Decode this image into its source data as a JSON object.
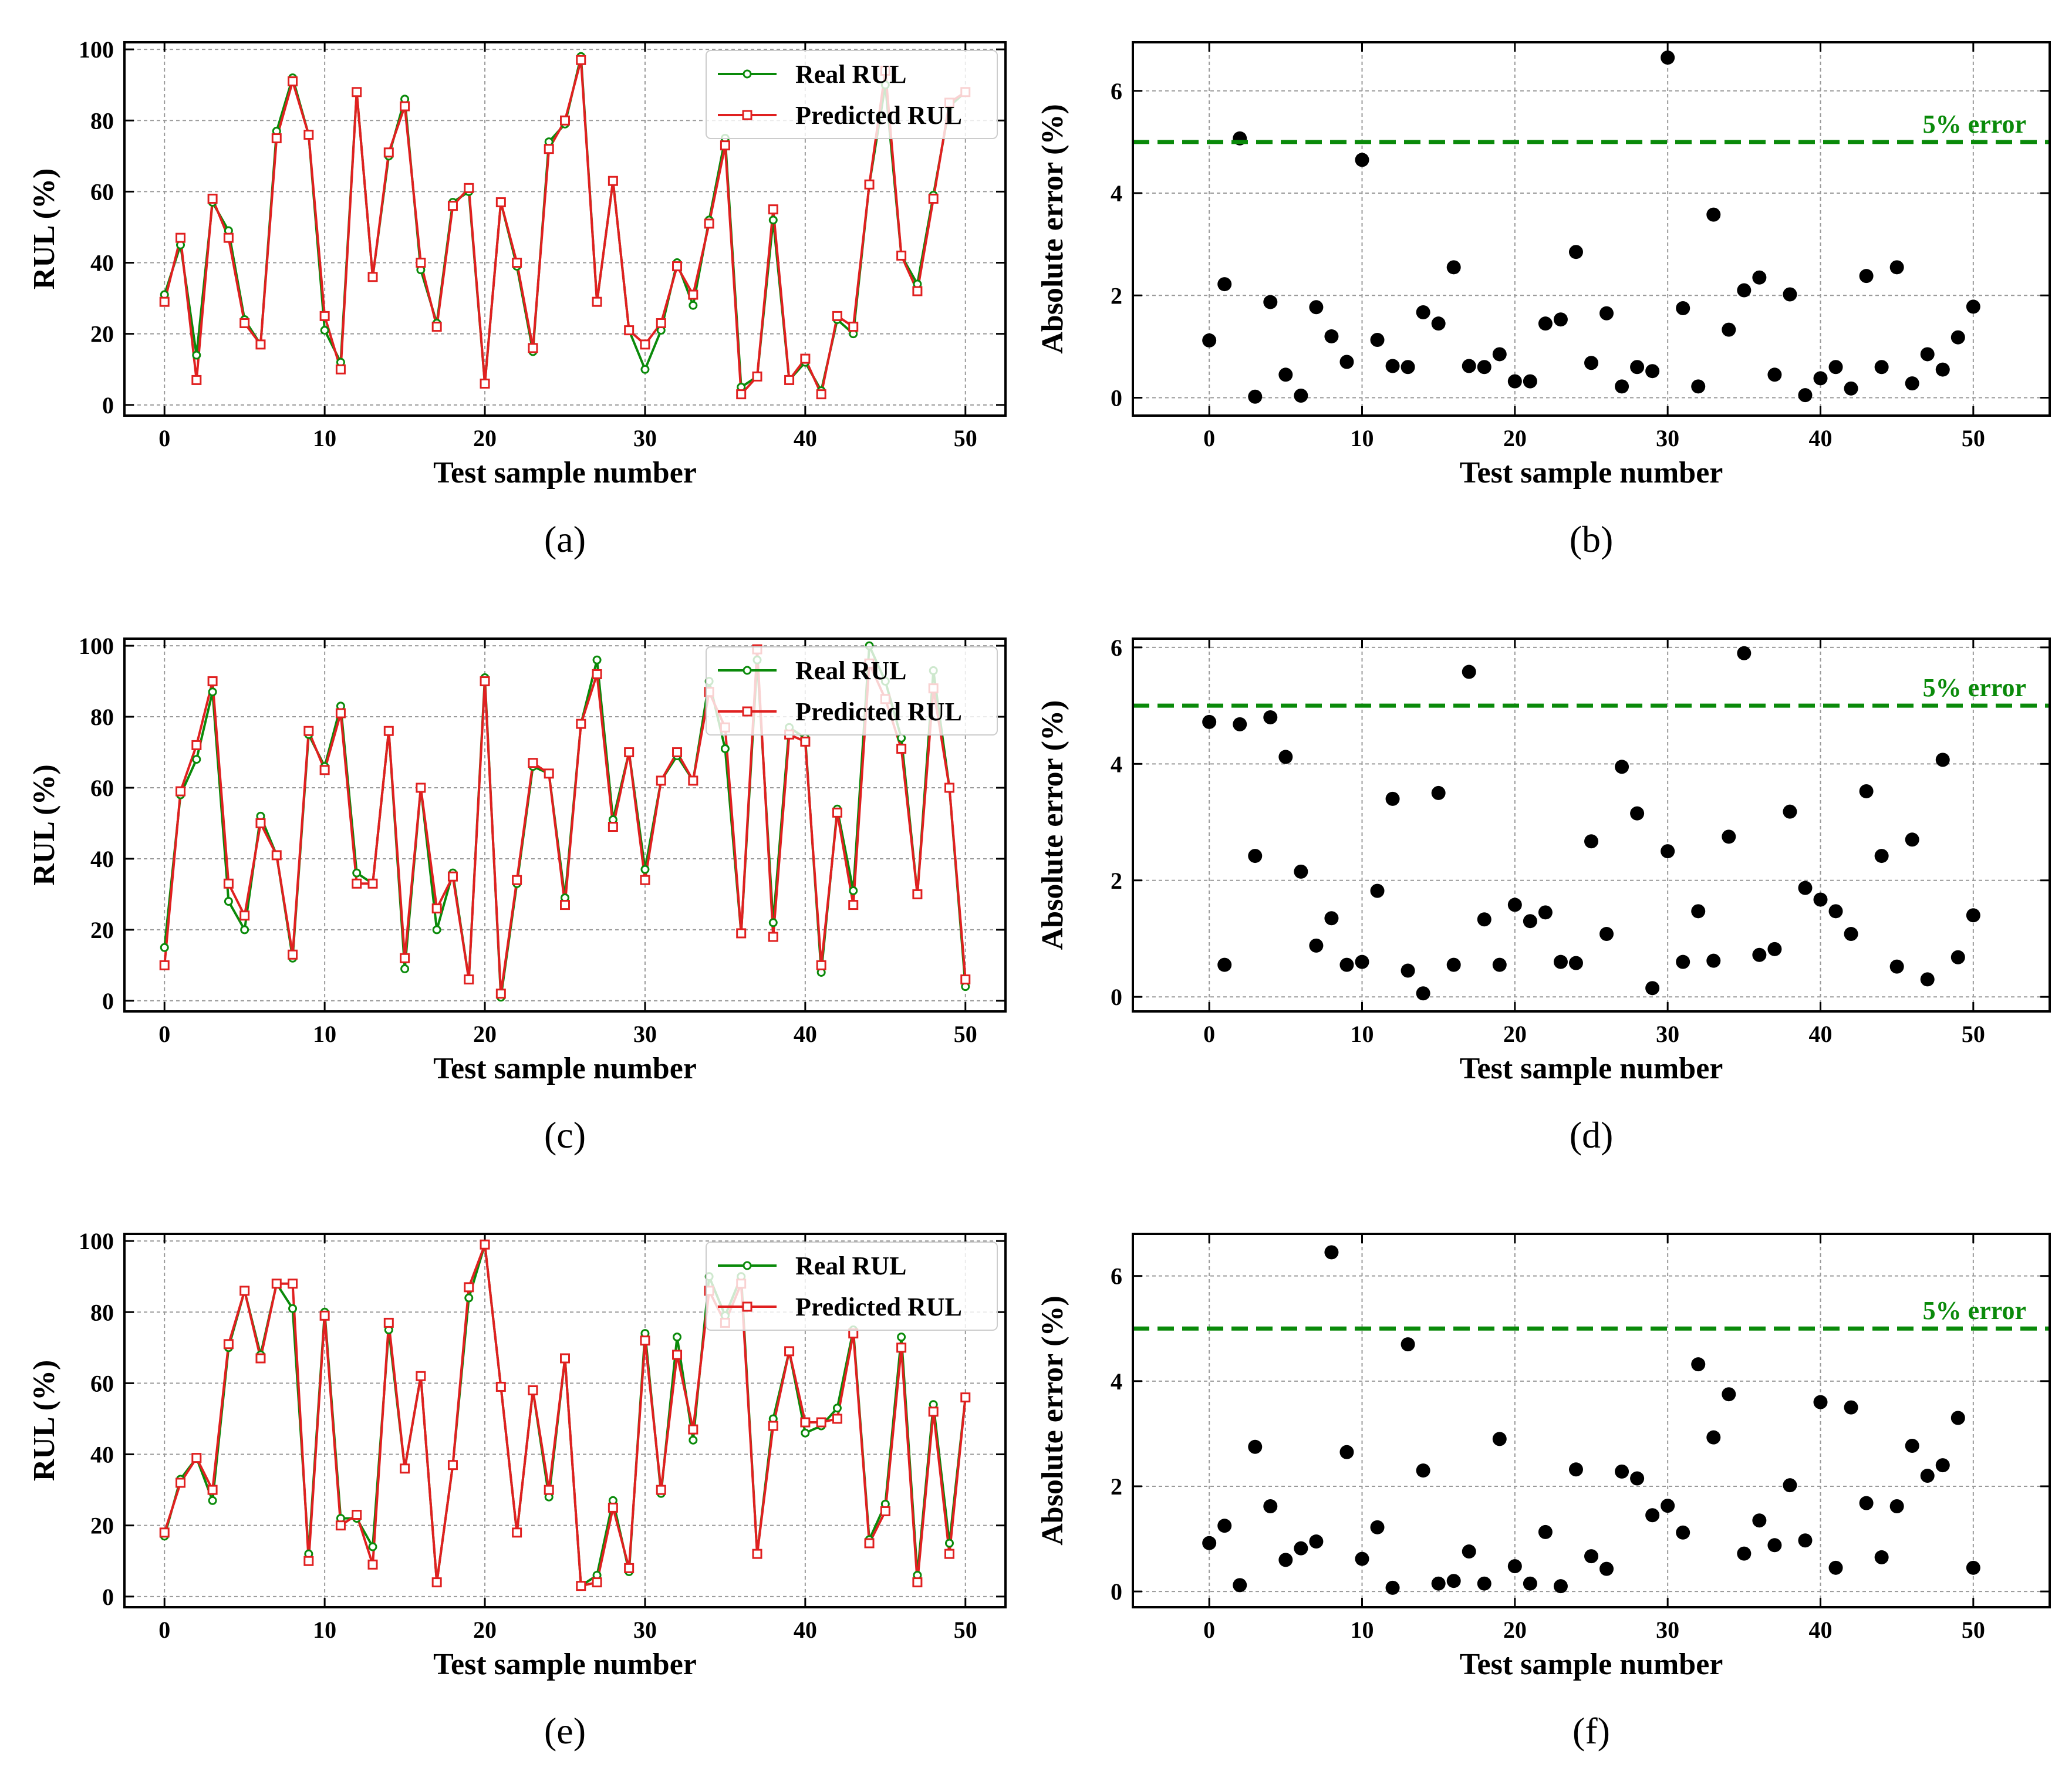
{
  "chart_data": [
    {
      "type": "line",
      "panel_label": "(a)",
      "title": "",
      "xlabel": "Test sample number",
      "ylabel": "RUL (%)",
      "xlim": [
        -2.5,
        52.5
      ],
      "ylim": [
        -3,
        102
      ],
      "xticks": [
        0,
        10,
        20,
        30,
        40,
        50
      ],
      "yticks": [
        0,
        20,
        40,
        60,
        80,
        100
      ],
      "grid": true,
      "legend": "top-right",
      "x": [
        0,
        1,
        2,
        3,
        4,
        5,
        6,
        7,
        8,
        9,
        10,
        11,
        12,
        13,
        14,
        15,
        16,
        17,
        18,
        19,
        20,
        21,
        22,
        23,
        24,
        25,
        26,
        27,
        28,
        29,
        30,
        31,
        32,
        33,
        34,
        35,
        36,
        37,
        38,
        39,
        40,
        41,
        42,
        43,
        44,
        45,
        46,
        47,
        48,
        49,
        50
      ],
      "series": [
        {
          "name": "Real RUL",
          "color": "#0a8a0a",
          "marker": "circle",
          "values": [
            31,
            45,
            14,
            57,
            49,
            24,
            17,
            77,
            92,
            76,
            21,
            12,
            88,
            36,
            70,
            86,
            38,
            23,
            57,
            60,
            6,
            57,
            39,
            15,
            74,
            79,
            98,
            29,
            63,
            21,
            10,
            21,
            40,
            28,
            52,
            75,
            5,
            8,
            52,
            7,
            12,
            4,
            24,
            20,
            62,
            90,
            42,
            34,
            59,
            84,
            88
          ]
        },
        {
          "name": "Predicted RUL",
          "color": "#e02020",
          "marker": "square",
          "values": [
            29,
            47,
            7,
            58,
            47,
            23,
            17,
            75,
            91,
            76,
            25,
            10,
            88,
            36,
            71,
            84,
            40,
            22,
            56,
            61,
            6,
            57,
            40,
            16,
            72,
            80,
            97,
            29,
            63,
            21,
            17,
            23,
            39,
            31,
            51,
            73,
            3,
            8,
            55,
            7,
            13,
            3,
            25,
            22,
            62,
            94,
            42,
            32,
            58,
            85,
            88
          ]
        }
      ]
    },
    {
      "type": "scatter",
      "panel_label": "(b)",
      "title": "",
      "xlabel": "Test sample number",
      "ylabel": "Absolute error (%)",
      "xlim": [
        -5,
        55
      ],
      "ylim": [
        -0.35,
        6.95
      ],
      "xticks": [
        0,
        10,
        20,
        30,
        40,
        50
      ],
      "yticks": [
        0,
        2,
        4,
        6
      ],
      "grid": true,
      "threshold": {
        "value": 5,
        "label": "5% error",
        "color": "#0a8a0a"
      },
      "x": [
        0,
        1,
        2,
        3,
        4,
        5,
        6,
        7,
        8,
        9,
        10,
        11,
        12,
        13,
        14,
        15,
        16,
        17,
        18,
        19,
        20,
        21,
        22,
        23,
        24,
        25,
        26,
        27,
        28,
        29,
        30,
        31,
        32,
        33,
        34,
        35,
        36,
        37,
        38,
        39,
        40,
        41,
        42,
        43,
        44,
        45,
        46,
        47,
        48,
        49,
        50
      ],
      "values": [
        1.12,
        2.22,
        5.07,
        0.02,
        1.87,
        0.45,
        0.04,
        1.77,
        1.2,
        0.7,
        4.65,
        1.13,
        0.62,
        0.6,
        1.67,
        1.45,
        2.55,
        0.62,
        0.6,
        0.85,
        0.32,
        0.32,
        1.45,
        1.53,
        2.85,
        0.68,
        1.65,
        0.22,
        0.6,
        0.52,
        6.65,
        1.75,
        0.22,
        3.58,
        1.33,
        2.1,
        2.35,
        0.45,
        2.02,
        0.05,
        0.38,
        0.6,
        0.18,
        2.38,
        0.6,
        2.55,
        0.28,
        0.85,
        0.55,
        1.18,
        1.78
      ]
    },
    {
      "type": "line",
      "panel_label": "(c)",
      "title": "",
      "xlabel": "Test sample number",
      "ylabel": "RUL (%)",
      "xlim": [
        -2.5,
        52.5
      ],
      "ylim": [
        -3,
        102
      ],
      "xticks": [
        0,
        10,
        20,
        30,
        40,
        50
      ],
      "yticks": [
        0,
        20,
        40,
        60,
        80,
        100
      ],
      "grid": true,
      "legend": "top-right",
      "x": [
        0,
        1,
        2,
        3,
        4,
        5,
        6,
        7,
        8,
        9,
        10,
        11,
        12,
        13,
        14,
        15,
        16,
        17,
        18,
        19,
        20,
        21,
        22,
        23,
        24,
        25,
        26,
        27,
        28,
        29,
        30,
        31,
        32,
        33,
        34,
        35,
        36,
        37,
        38,
        39,
        40,
        41,
        42,
        43,
        44,
        45,
        46,
        47,
        48,
        49,
        50
      ],
      "series": [
        {
          "name": "Real RUL",
          "color": "#0a8a0a",
          "marker": "circle",
          "values": [
            15,
            58,
            68,
            87,
            28,
            20,
            52,
            41,
            12,
            75,
            66,
            83,
            36,
            33,
            76,
            9,
            60,
            20,
            36,
            6,
            91,
            1,
            33,
            66,
            64,
            29,
            78,
            96,
            51,
            70,
            37,
            62,
            69,
            62,
            90,
            71,
            19,
            96,
            22,
            77,
            74,
            8,
            54,
            31,
            100,
            90,
            74,
            30,
            93,
            60,
            4
          ]
        },
        {
          "name": "Predicted RUL",
          "color": "#e02020",
          "marker": "square",
          "values": [
            10,
            59,
            72,
            90,
            33,
            24,
            50,
            41,
            13,
            76,
            65,
            81,
            33,
            33,
            76,
            12,
            60,
            26,
            35,
            6,
            90,
            2,
            34,
            67,
            64,
            27,
            78,
            92,
            49,
            70,
            34,
            62,
            70,
            62,
            87,
            77,
            19,
            99,
            18,
            75,
            73,
            10,
            53,
            27,
            95,
            85,
            71,
            30,
            88,
            60,
            6
          ]
        }
      ]
    },
    {
      "type": "scatter",
      "panel_label": "(d)",
      "title": "",
      "xlabel": "Test sample number",
      "ylabel": "Absolute error (%)",
      "xlim": [
        -5,
        55
      ],
      "ylim": [
        -0.25,
        6.15
      ],
      "xticks": [
        0,
        10,
        20,
        30,
        40,
        50
      ],
      "yticks": [
        0,
        2,
        4,
        6
      ],
      "grid": true,
      "threshold": {
        "value": 5,
        "label": "5% error",
        "color": "#0a8a0a"
      },
      "x": [
        0,
        1,
        2,
        3,
        4,
        5,
        6,
        7,
        8,
        9,
        10,
        11,
        12,
        13,
        14,
        15,
        16,
        17,
        18,
        19,
        20,
        21,
        22,
        23,
        24,
        25,
        26,
        27,
        28,
        29,
        30,
        31,
        32,
        33,
        34,
        35,
        36,
        37,
        38,
        39,
        40,
        41,
        42,
        43,
        44,
        45,
        46,
        47,
        48,
        49,
        50
      ],
      "values": [
        4.72,
        0.55,
        4.68,
        2.42,
        4.8,
        4.12,
        2.15,
        0.88,
        1.35,
        0.55,
        0.6,
        1.82,
        3.4,
        0.45,
        0.06,
        3.5,
        0.55,
        5.58,
        1.33,
        0.55,
        1.58,
        1.3,
        1.45,
        0.6,
        0.58,
        2.67,
        1.08,
        3.95,
        3.15,
        0.15,
        2.5,
        0.6,
        1.47,
        0.62,
        2.75,
        5.9,
        0.72,
        0.82,
        3.18,
        1.87,
        1.67,
        1.47,
        1.08,
        3.53,
        2.42,
        0.52,
        2.7,
        0.3,
        4.07,
        0.68,
        1.4
      ]
    },
    {
      "type": "line",
      "panel_label": "(e)",
      "title": "",
      "xlabel": "Test sample number",
      "ylabel": "RUL (%)",
      "xlim": [
        -2.5,
        52.5
      ],
      "ylim": [
        -3,
        102
      ],
      "xticks": [
        0,
        10,
        20,
        30,
        40,
        50
      ],
      "yticks": [
        0,
        20,
        40,
        60,
        80,
        100
      ],
      "grid": true,
      "legend": "top-right",
      "x": [
        0,
        1,
        2,
        3,
        4,
        5,
        6,
        7,
        8,
        9,
        10,
        11,
        12,
        13,
        14,
        15,
        16,
        17,
        18,
        19,
        20,
        21,
        22,
        23,
        24,
        25,
        26,
        27,
        28,
        29,
        30,
        31,
        32,
        33,
        34,
        35,
        36,
        37,
        38,
        39,
        40,
        41,
        42,
        43,
        44,
        45,
        46,
        47,
        48,
        49,
        50
      ],
      "series": [
        {
          "name": "Real RUL",
          "color": "#0a8a0a",
          "marker": "circle",
          "values": [
            17,
            33,
            39,
            27,
            70,
            86,
            68,
            88,
            81,
            12,
            80,
            22,
            22,
            14,
            75,
            36,
            62,
            4,
            37,
            84,
            99,
            59,
            18,
            58,
            28,
            67,
            3,
            6,
            27,
            7,
            74,
            29,
            73,
            44,
            90,
            79,
            90,
            12,
            50,
            69,
            46,
            48,
            53,
            75,
            16,
            26,
            73,
            6,
            54,
            15,
            56
          ]
        },
        {
          "name": "Predicted RUL",
          "color": "#e02020",
          "marker": "square",
          "values": [
            18,
            32,
            39,
            30,
            71,
            86,
            67,
            88,
            88,
            10,
            79,
            20,
            23,
            9,
            77,
            36,
            62,
            4,
            37,
            87,
            99,
            59,
            18,
            58,
            30,
            67,
            3,
            4,
            25,
            8,
            72,
            30,
            68,
            47,
            86,
            77,
            88,
            12,
            48,
            69,
            49,
            49,
            50,
            74,
            15,
            24,
            70,
            4,
            52,
            12,
            56
          ]
        }
      ]
    },
    {
      "type": "scatter",
      "panel_label": "(f)",
      "title": "",
      "xlabel": "Test sample number",
      "ylabel": "Absolute error (%)",
      "xlim": [
        -5,
        55
      ],
      "ylim": [
        -0.3,
        6.8
      ],
      "xticks": [
        0,
        10,
        20,
        30,
        40,
        50
      ],
      "yticks": [
        0,
        2,
        4,
        6
      ],
      "grid": true,
      "threshold": {
        "value": 5,
        "label": "5% error",
        "color": "#0a8a0a"
      },
      "x": [
        0,
        1,
        2,
        3,
        4,
        5,
        6,
        7,
        8,
        9,
        10,
        11,
        12,
        13,
        14,
        15,
        16,
        17,
        18,
        19,
        20,
        21,
        22,
        23,
        24,
        25,
        26,
        27,
        28,
        29,
        30,
        31,
        32,
        33,
        34,
        35,
        36,
        37,
        38,
        39,
        40,
        41,
        42,
        43,
        44,
        45,
        46,
        47,
        48,
        49,
        50
      ],
      "values": [
        0.92,
        1.25,
        0.12,
        2.75,
        1.62,
        0.6,
        0.82,
        0.95,
        6.45,
        2.65,
        0.62,
        1.22,
        0.07,
        4.7,
        2.3,
        0.15,
        0.2,
        0.76,
        0.15,
        2.9,
        0.48,
        0.15,
        1.13,
        0.1,
        2.32,
        0.67,
        0.43,
        2.28,
        2.15,
        1.45,
        1.63,
        1.12,
        4.32,
        2.93,
        3.75,
        0.72,
        1.35,
        0.88,
        2.02,
        0.97,
        3.6,
        0.45,
        3.5,
        1.68,
        0.65,
        1.62,
        2.77,
        2.2,
        2.4,
        3.3,
        0.45
      ]
    }
  ]
}
